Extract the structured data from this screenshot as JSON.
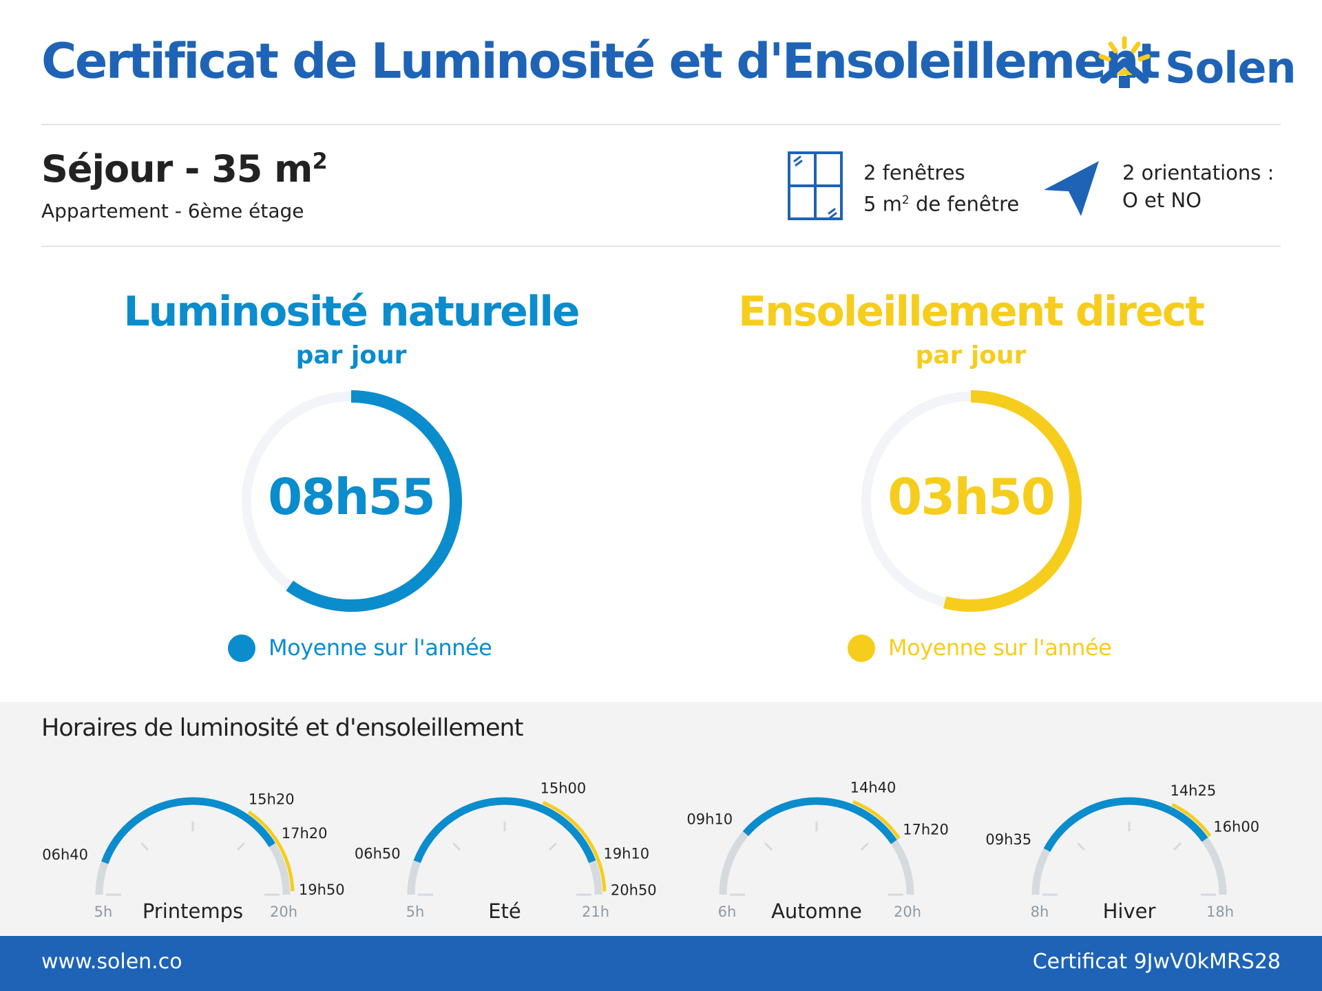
{
  "header": {
    "title": "Certificat de Luminosité et d'Ensoleillement",
    "brand": "Solen",
    "brand_color": "#1e63b6",
    "logo_icon": "sun-house-icon"
  },
  "room": {
    "name": "Séjour - 35 m",
    "name_exponent": "2",
    "description": "Appartement - 6ème étage",
    "windows_icon": "window-icon",
    "windows_line1": "2 fenêtres",
    "windows_line2_prefix": "5 m",
    "windows_line2_exponent": "2",
    "windows_line2_suffix": " de fenêtre",
    "orientation_icon": "compass-arrow-icon",
    "orientation_line1": "2 orientations :",
    "orientation_line2": "O et NO"
  },
  "summary": {
    "luminosity": {
      "title": "Luminosité naturelle",
      "subtitle": "par jour",
      "value": "08h55",
      "fraction": 0.6,
      "legend": "Moyenne sur l'année",
      "color": "#0a8ccd"
    },
    "sunlight": {
      "title": "Ensoleillement direct",
      "subtitle": "par jour",
      "value": "03h50",
      "fraction": 0.54,
      "legend": "Moyenne sur l'année",
      "color": "#f6cd1c"
    }
  },
  "schedule": {
    "title": "Horaires de luminosité et d'ensoleillement",
    "colors": {
      "track": "#d5dade",
      "light": "#0a8ccd",
      "sun": "#f6cd1c"
    },
    "seasons": [
      {
        "name": "Printemps",
        "range_start": "5h",
        "range_end": "20h",
        "light_start": "06h40",
        "sun_start": "15h20",
        "light_end": "17h20",
        "sun_end": "19h50"
      },
      {
        "name": "Eté",
        "range_start": "5h",
        "range_end": "21h",
        "light_start": "06h50",
        "sun_start": "15h00",
        "light_end": "19h10",
        "sun_end": "20h50"
      },
      {
        "name": "Automne",
        "range_start": "6h",
        "range_end": "20h",
        "light_start": "09h10",
        "sun_start": "14h40",
        "light_end": "17h20"
      },
      {
        "name": "Hiver",
        "range_start": "8h",
        "range_end": "18h",
        "light_start": "09h35",
        "sun_start": "14h25",
        "light_end": "16h00"
      }
    ]
  },
  "footer": {
    "website": "www.solen.co",
    "certificate": "Certificat 9JwV0kMRS28"
  }
}
